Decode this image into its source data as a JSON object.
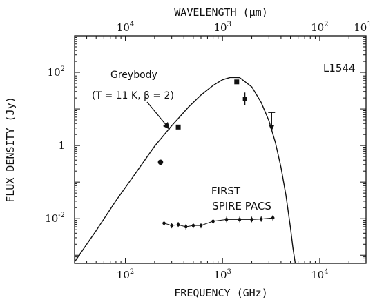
{
  "chart_data": {
    "type": "scatter",
    "label": "L1544",
    "xlabel": "FREQUENCY (GHz)",
    "ylabel": "FLUX DENSITY (Jy)",
    "top_xlabel": "WAVELENGTH (μm)",
    "x_scale": "log",
    "y_scale": "log",
    "xlim": [
      30,
      30000
    ],
    "ylim": [
      0.0006,
      1000
    ],
    "x_ticks": [
      {
        "value": 100,
        "base": "10",
        "exp": "2"
      },
      {
        "value": 1000,
        "base": "10",
        "exp": "3"
      },
      {
        "value": 10000,
        "base": "10",
        "exp": "4"
      }
    ],
    "y_ticks": [
      {
        "value": 100,
        "base": "10",
        "exp": "2"
      },
      {
        "value": 1,
        "base": "1",
        "exp": ""
      },
      {
        "value": 0.01,
        "base": "10",
        "exp": "-2"
      }
    ],
    "top_ticks": [
      {
        "value": 10000,
        "base": "10",
        "exp": "4"
      },
      {
        "value": 1000,
        "base": "10",
        "exp": "3"
      },
      {
        "value": 100,
        "base": "10",
        "exp": "2"
      },
      {
        "value": 10,
        "base": "10",
        "exp": "1"
      }
    ],
    "greybody_curve": {
      "name": "Greybody",
      "parameters": "(T = 11 K, β = 2)",
      "x": [
        30,
        50,
        80,
        120,
        200,
        300,
        450,
        600,
        800,
        1000,
        1200,
        1500,
        2000,
        2500,
        3000,
        3500,
        4000,
        4500,
        5000,
        5300,
        5600
      ],
      "y": [
        0.00066,
        0.0047,
        0.031,
        0.14,
        0.96,
        3.5,
        11.5,
        24,
        44,
        63,
        73,
        72,
        40,
        15,
        4.8,
        1.2,
        0.25,
        0.043,
        0.0058,
        0.0016,
        0.0004
      ]
    },
    "observed_points": [
      {
        "x": 230,
        "y": 0.35,
        "marker": "filled-circle"
      },
      {
        "x": 350,
        "y": 3.2,
        "marker": "filled-square"
      },
      {
        "x": 1400,
        "y": 55,
        "marker": "filled-square"
      },
      {
        "x": 1700,
        "y": 19,
        "marker": "square-with-error"
      }
    ],
    "upper_limits": [
      {
        "x": 3200,
        "y": 8
      }
    ],
    "sensitivity_points": {
      "name": "FIRST SPIRE PACS",
      "x": [
        250,
        300,
        350,
        420,
        500,
        600,
        800,
        1100,
        1500,
        2000,
        2500,
        3300
      ],
      "y": [
        0.0075,
        0.0065,
        0.0068,
        0.006,
        0.0065,
        0.0065,
        0.0085,
        0.0095,
        0.0095,
        0.0095,
        0.0098,
        0.0105
      ]
    },
    "annotations": {
      "greybody_title": "Greybody",
      "greybody_params": "(T = 11 K, β = 2)",
      "first_label": "FIRST",
      "spire_pacs_label": "SPIRE PACS"
    }
  }
}
